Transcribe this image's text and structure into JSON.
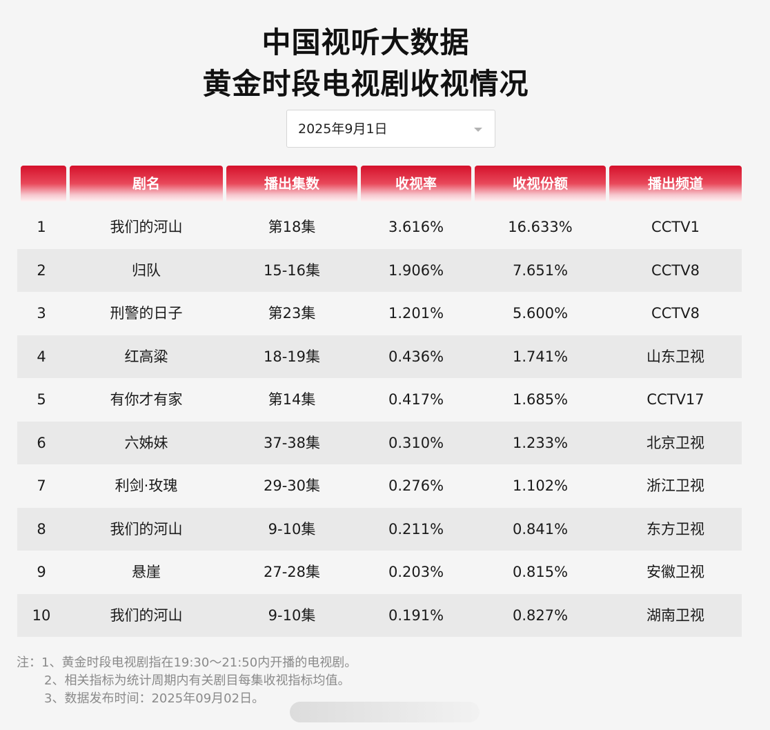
{
  "title": {
    "line1": "中国视听大数据",
    "line2": "黄金时段电视剧收视情况"
  },
  "date_select": {
    "value": "2025年9月1日"
  },
  "table": {
    "headers": [
      "",
      "剧名",
      "播出集数",
      "收视率",
      "收视份额",
      "播出频道"
    ],
    "rows": [
      {
        "rank": "1",
        "name": "我们的河山",
        "episodes": "第18集",
        "rating": "3.616%",
        "share": "16.633%",
        "channel": "CCTV1"
      },
      {
        "rank": "2",
        "name": "归队",
        "episodes": "15-16集",
        "rating": "1.906%",
        "share": "7.651%",
        "channel": "CCTV8"
      },
      {
        "rank": "3",
        "name": "刑警的日子",
        "episodes": "第23集",
        "rating": "1.201%",
        "share": "5.600%",
        "channel": "CCTV8"
      },
      {
        "rank": "4",
        "name": "红高粱",
        "episodes": "18-19集",
        "rating": "0.436%",
        "share": "1.741%",
        "channel": "山东卫视"
      },
      {
        "rank": "5",
        "name": "有你才有家",
        "episodes": "第14集",
        "rating": "0.417%",
        "share": "1.685%",
        "channel": "CCTV17"
      },
      {
        "rank": "6",
        "name": "六姊妹",
        "episodes": "37-38集",
        "rating": "0.310%",
        "share": "1.233%",
        "channel": "北京卫视"
      },
      {
        "rank": "7",
        "name": "利剑·玫瑰",
        "episodes": "29-30集",
        "rating": "0.276%",
        "share": "1.102%",
        "channel": "浙江卫视"
      },
      {
        "rank": "8",
        "name": "我们的河山",
        "episodes": "9-10集",
        "rating": "0.211%",
        "share": "0.841%",
        "channel": "东方卫视"
      },
      {
        "rank": "9",
        "name": "悬崖",
        "episodes": "27-28集",
        "rating": "0.203%",
        "share": "0.815%",
        "channel": "安徽卫视"
      },
      {
        "rank": "10",
        "name": "我们的河山",
        "episodes": "9-10集",
        "rating": "0.191%",
        "share": "0.827%",
        "channel": "湖南卫视"
      }
    ]
  },
  "notes": [
    "注：1、黄金时段电视剧指在19:30～21:50内开播的电视剧。",
    "2、相关指标为统计周期内有关剧目每集收视指标均值。",
    "3、数据发布时间：2025年09月02日。"
  ],
  "colors": {
    "header_red": "#d5112b",
    "row_alt": "#e9e9e9",
    "page_bg": "#f5f5f5",
    "note_gray": "#8a8a8a"
  },
  "icons": {
    "dropdown": "chevron-down-icon"
  }
}
